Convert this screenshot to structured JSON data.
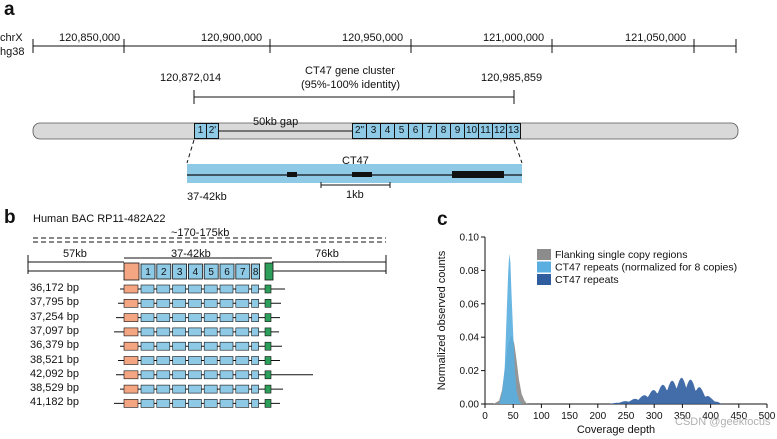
{
  "panels": {
    "a": "a",
    "b": "b",
    "c": "c"
  },
  "panel_a": {
    "chrom": "chrX",
    "assembly": "hg38",
    "ticks": [
      "120,850,000",
      "120,900,000",
      "120,950,000",
      "121,000,000",
      "121,050,000"
    ],
    "cluster_title": "CT47 gene cluster",
    "cluster_identity": "(95%-100% identity)",
    "cluster_start": "120,872,014",
    "cluster_end": "120,985,859",
    "gap_label": "50kb gap",
    "left_copies": [
      "1",
      "2'"
    ],
    "right_copies": [
      "2\"",
      "3",
      "4",
      "5",
      "6",
      "7",
      "8",
      "9",
      "10",
      "11",
      "12",
      "13"
    ],
    "gene_label": "CT47",
    "scale_label": "1kb",
    "repeat_size": "37-42kb",
    "colors": {
      "repeat": "#8ecae6",
      "chrom_bar": "#d9d9d9"
    }
  },
  "panel_b": {
    "bac_label": "Human BAC RP11-482A22",
    "total_size": "~170-175kb",
    "left_flank": "57kb",
    "middle": "37-42kb",
    "right_flank": "76kb",
    "copies": [
      "1",
      "2",
      "3",
      "4",
      "5",
      "6",
      "7",
      "8"
    ],
    "reads": [
      "36,172 bp",
      "37,795 bp",
      "37,254 bp",
      "37,097 bp",
      "36,379 bp",
      "38,521 bp",
      "42,092 bp",
      "38,529 bp",
      "41,182 bp"
    ],
    "colors": {
      "orange": "#f4a582",
      "blue": "#8ecae6",
      "green": "#2e9e5b"
    }
  },
  "chart_data": {
    "type": "area",
    "ylabel": "Normalized observed counts",
    "xlabel": "Coverage depth",
    "x_ticks": [
      "0",
      "50",
      "100",
      "150",
      "200",
      "250",
      "300",
      "350",
      "400",
      "450",
      "500"
    ],
    "y_ticks": [
      "0.00",
      "0.02",
      "0.04",
      "0.06",
      "0.08",
      "0.10"
    ],
    "xlim": [
      0,
      500
    ],
    "ylim": [
      0,
      0.1
    ],
    "legend_position": "top-right",
    "series": [
      {
        "name": "Flanking single copy regions",
        "color": "#8c8c8c",
        "x": [
          15,
          25,
          30,
          35,
          40,
          45,
          48,
          52,
          56,
          60,
          65,
          70,
          75
        ],
        "y": [
          0,
          0.002,
          0.008,
          0.02,
          0.034,
          0.04,
          0.041,
          0.036,
          0.026,
          0.015,
          0.006,
          0.002,
          0
        ]
      },
      {
        "name": "CT47 repeats (normalized for 8 copies)",
        "color": "#5aaee0",
        "x": [
          25,
          30,
          35,
          38,
          41,
          43,
          45,
          47,
          50,
          53,
          56,
          60,
          65
        ],
        "y": [
          0,
          0.006,
          0.022,
          0.05,
          0.078,
          0.09,
          0.085,
          0.066,
          0.042,
          0.02,
          0.008,
          0.002,
          0
        ]
      },
      {
        "name": "CT47 repeats",
        "color": "#2f5d9e",
        "x": [
          220,
          240,
          260,
          280,
          300,
          320,
          340,
          355,
          370,
          385,
          400,
          420
        ],
        "y": [
          0,
          0.001,
          0.002,
          0.004,
          0.007,
          0.01,
          0.012,
          0.013,
          0.011,
          0.007,
          0.003,
          0
        ]
      }
    ]
  },
  "watermark": "CSDN @geekfocus"
}
